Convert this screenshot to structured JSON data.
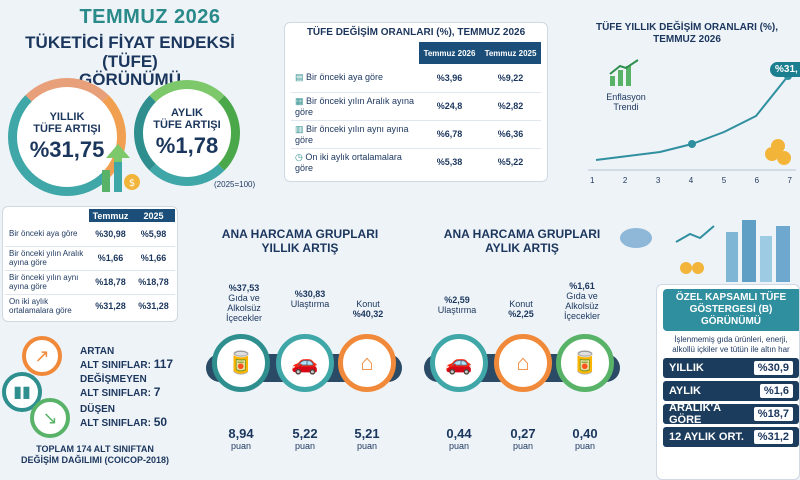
{
  "header": {
    "title": "TEMMUZ 2026",
    "subtitle_line1": "TÜKETİCİ FİYAT ENDEKSİ (TÜFE)",
    "subtitle_line2": "GÖRÜNÜMÜ"
  },
  "kpis": {
    "annual": {
      "label1": "YILLIK",
      "label2": "TÜFE ARTIŞI",
      "value": "%31,75"
    },
    "monthly": {
      "label1": "AYLIK",
      "label2": "TÜFE ARTIŞI",
      "value": "%1,78"
    },
    "base_note": "(2025=100)"
  },
  "left_table": {
    "headers": [
      "Temmuz",
      "2025"
    ],
    "rows": [
      {
        "label": "Bir önceki aya göre",
        "v1": "%30,98",
        "v2": "%5,98"
      },
      {
        "label": "Bir önceki yılın Aralık ayına göre",
        "v1": "%1,66",
        "v2": "%1,66"
      },
      {
        "label": "Bir önceki yılın aynı ayına göre",
        "v1": "%18,78",
        "v2": "%18,78"
      },
      {
        "label": "On iki aylık ortalamalara göre",
        "v1": "%31,28",
        "v2": "%31,28"
      }
    ]
  },
  "changes_table": {
    "title": "TÜFE DEĞİŞİM ORANLARI (%), TEMMUZ 2026",
    "headers": [
      "Temmuz 2026",
      "Temmuz 2025"
    ],
    "rows": [
      {
        "label": "Bir önceki aya göre",
        "v1": "%3,96",
        "v2": "%9,22"
      },
      {
        "label": "Bir önceki yılın Aralık ayına göre",
        "v1": "%24,8",
        "v2": "%2,82"
      },
      {
        "label": "Bir önceki yılın aynı ayına göre",
        "v1": "%6,78",
        "v2": "%6,36"
      },
      {
        "label": "On iki aylık ortalamalara göre",
        "v1": "%5,38",
        "v2": "%5,22"
      }
    ]
  },
  "trend": {
    "title": "TÜFE YILLIK DEĞİŞİM ORANLARI (%), TEMMUZ 2026",
    "label": "Enflasyon Trendi",
    "badge": "%31,",
    "x_ticks": [
      "1",
      "2",
      "3",
      "4",
      "5",
      "6",
      "7"
    ]
  },
  "counts": {
    "up": {
      "label1": "ARTAN",
      "label2": "ALT SINIFLAR:",
      "value": "117"
    },
    "same": {
      "label1": "DEĞİŞMEYEN",
      "label2": "ALT SINIFLAR:",
      "value": "7"
    },
    "down": {
      "label1": "DÜŞEN",
      "label2": "ALT SINIFLAR:",
      "value": "50"
    },
    "footer1": "TOPLAM 174 ALT SINIFTAN",
    "footer2": "DEĞİŞİM DAĞILIMI (COICOP-2018)"
  },
  "annual_groups": {
    "title1": "ANA HARCAMA GRUPLARI",
    "title2": "YILLIK ARTIŞ",
    "items": [
      {
        "pct": "%37,53",
        "name": "Gıda ve Alkolsüz İçecekler",
        "points": "8,94",
        "unit": "puan"
      },
      {
        "pct": "%30,83",
        "name": "Ulaştırma",
        "points": "5,22",
        "unit": "puan"
      },
      {
        "pct": "%40,32",
        "name": "Konut",
        "points": "5,21",
        "unit": "puan"
      }
    ]
  },
  "monthly_groups": {
    "title1": "ANA HARCAMA GRUPLARI",
    "title2": "AYLIK ARTIŞ",
    "items": [
      {
        "pct": "%2,59",
        "name": "Ulaştırma",
        "points": "0,44",
        "unit": "puan"
      },
      {
        "pct": "%2,25",
        "name": "Konut",
        "points": "0,27",
        "unit": "puan"
      },
      {
        "pct": "%1,61",
        "name": "Gıda ve Alkolsüz İçecekler",
        "points": "0,40",
        "unit": "puan"
      }
    ]
  },
  "special": {
    "title1": "ÖZEL KAPSAMLI TÜFE",
    "title2": "GÖSTERGESİ (B)",
    "title3": "GÖRÜNÜMÜ",
    "note": "İşlenmemiş gıda ürünleri, enerji, alkollü içkiler ve tütün ile altın har",
    "rows": [
      {
        "label": "YILLIK",
        "value": "%30,9"
      },
      {
        "label": "AYLIK",
        "value": "%1,6"
      },
      {
        "label": "ARALIK'A GÖRE",
        "value": "%18,7"
      },
      {
        "label": "12 AYLIK ORT.",
        "value": "%31,2"
      }
    ]
  }
}
